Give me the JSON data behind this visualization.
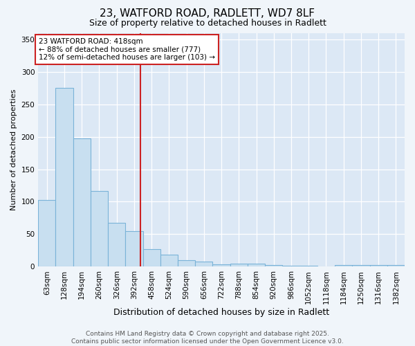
{
  "title1": "23, WATFORD ROAD, RADLETT, WD7 8LF",
  "title2": "Size of property relative to detached houses in Radlett",
  "xlabel": "Distribution of detached houses by size in Radlett",
  "ylabel": "Number of detached properties",
  "bar_values": [
    103,
    275,
    198,
    116,
    68,
    55,
    27,
    18,
    10,
    8,
    4,
    5,
    5,
    2,
    1,
    1,
    0,
    3,
    2,
    2,
    2
  ],
  "bin_edges": [
    30,
    96,
    162,
    228,
    294,
    360,
    426,
    492,
    558,
    624,
    690,
    756,
    822,
    888,
    954,
    1020,
    1086,
    1152,
    1218,
    1284,
    1350,
    1416
  ],
  "bar_labels": [
    "63sqm",
    "128sqm",
    "194sqm",
    "260sqm",
    "326sqm",
    "392sqm",
    "458sqm",
    "524sqm",
    "590sqm",
    "656sqm",
    "722sqm",
    "788sqm",
    "854sqm",
    "920sqm",
    "986sqm",
    "1052sqm",
    "1118sqm",
    "1184sqm",
    "1250sqm",
    "1316sqm",
    "1382sqm"
  ],
  "bar_color": "#c8dff0",
  "bar_edge_color": "#7ab3d8",
  "plot_bg_color": "#dce8f5",
  "fig_bg_color": "#f0f5fa",
  "grid_color": "#ffffff",
  "red_line_value": 418,
  "annotation_text": "23 WATFORD ROAD: 418sqm\n← 88% of detached houses are smaller (777)\n12% of semi-detached houses are larger (103) →",
  "annotation_box_facecolor": "#ffffff",
  "annotation_box_edgecolor": "#cc2222",
  "footer_text": "Contains HM Land Registry data © Crown copyright and database right 2025.\nContains public sector information licensed under the Open Government Licence v3.0.",
  "ylim": [
    0,
    360
  ],
  "yticks": [
    0,
    50,
    100,
    150,
    200,
    250,
    300,
    350
  ],
  "title1_fontsize": 11,
  "title2_fontsize": 9,
  "xlabel_fontsize": 9,
  "ylabel_fontsize": 8,
  "tick_fontsize": 7.5,
  "annot_fontsize": 7.5,
  "footer_fontsize": 6.5
}
